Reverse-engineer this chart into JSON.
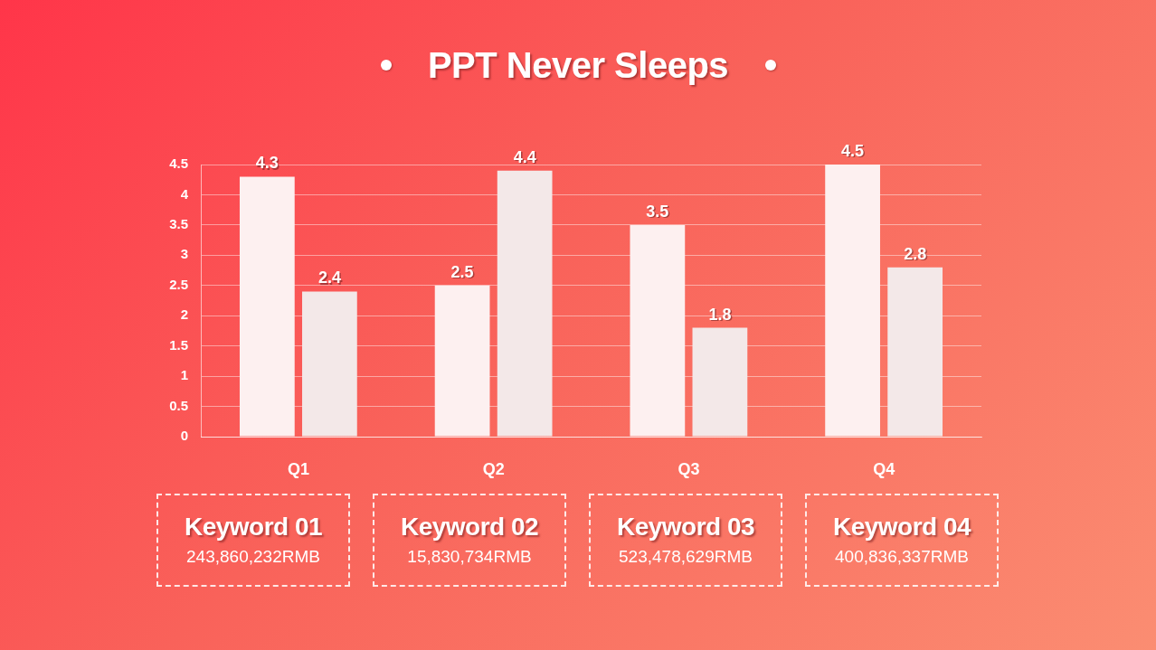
{
  "chart_data": {
    "type": "bar",
    "title": "PPT Never Sleeps",
    "categories": [
      "Q1",
      "Q2",
      "Q3",
      "Q4"
    ],
    "series": [
      {
        "color": "#fdf0f0",
        "values": [
          4.3,
          2.5,
          3.5,
          4.5
        ]
      },
      {
        "color": "#f3e8e8",
        "values": [
          2.4,
          4.4,
          1.8,
          2.8
        ]
      }
    ],
    "ylim": [
      0,
      4.5
    ],
    "yticks": [
      0,
      0.5,
      1,
      1.5,
      2,
      2.5,
      3,
      3.5,
      4,
      4.5
    ],
    "grid": "y",
    "data_labels": true,
    "legend": false,
    "annotations": [
      "Keyword 01",
      "243,860,232RMB",
      "Keyword 02",
      "15,830,734RMB",
      "Keyword 03",
      "523,478,629RMB",
      "Keyword 04",
      "400,836,337RMB"
    ]
  }
}
